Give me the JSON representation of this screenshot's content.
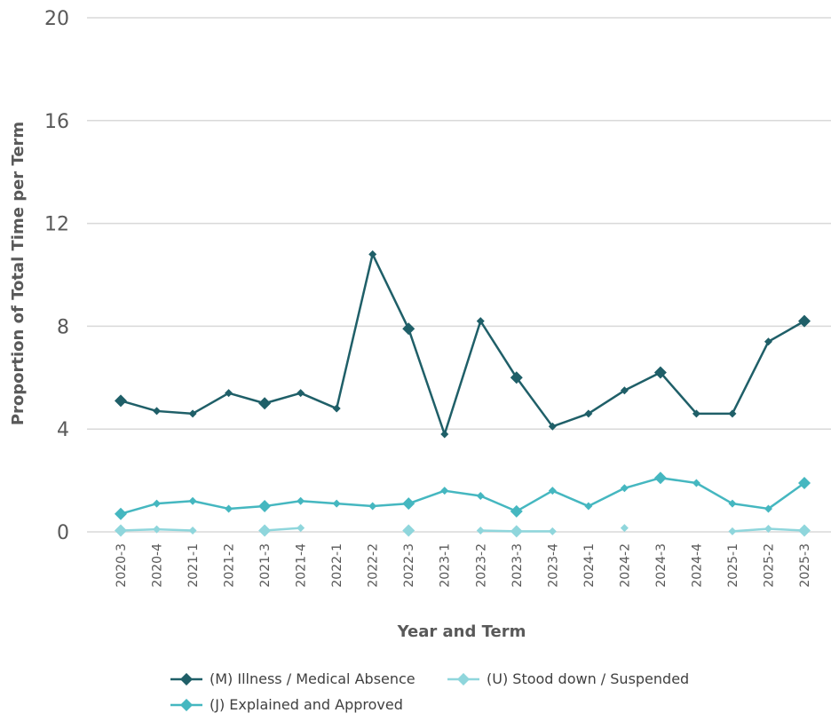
{
  "chart_data": {
    "type": "line",
    "xlabel": "Year and Term",
    "ylabel": "Proportion of Total Time per Term",
    "ylim": [
      0,
      20
    ],
    "yticks": [
      0,
      4,
      8,
      12,
      16,
      20
    ],
    "categories": [
      "2020-3",
      "2020-4",
      "2021-1",
      "2021-2",
      "2021-3",
      "2021-4",
      "2022-1",
      "2022-2",
      "2022-3",
      "2023-1",
      "2023-2",
      "2023-3",
      "2023-4",
      "2024-1",
      "2024-2",
      "2024-3",
      "2024-4",
      "2025-1",
      "2025-2",
      "2025-3"
    ],
    "grid": true,
    "legend_position": "bottom",
    "series": [
      {
        "name": "(M) Illness / Medical Absence",
        "color": "#1f5f68",
        "values": [
          5.1,
          4.7,
          4.6,
          5.4,
          5.0,
          5.4,
          4.8,
          10.8,
          7.9,
          3.8,
          8.2,
          6.0,
          4.1,
          4.6,
          5.5,
          6.2,
          4.6,
          4.6,
          7.4,
          8.2
        ],
        "large_markers": [
          0,
          4,
          8,
          11,
          15,
          19
        ]
      },
      {
        "name": "(J) Explained and Approved",
        "color": "#45b7c0",
        "values": [
          0.7,
          1.1,
          1.2,
          0.9,
          1.0,
          1.2,
          1.1,
          1.0,
          1.1,
          1.6,
          1.4,
          0.8,
          1.6,
          1.0,
          1.7,
          2.1,
          1.9,
          1.1,
          0.9,
          1.9
        ],
        "large_markers": [
          0,
          4,
          8,
          11,
          15,
          19
        ]
      },
      {
        "name": "(U) Stood down / Suspended",
        "color": "#8fd6dc",
        "values": [
          0.05,
          0.1,
          0.05,
          null,
          0.05,
          0.15,
          null,
          null,
          0.05,
          null,
          0.05,
          0.02,
          0.02,
          null,
          0.15,
          null,
          null,
          0.02,
          0.12,
          0.05
        ],
        "large_markers": [
          0,
          4,
          8,
          11,
          15,
          19
        ]
      }
    ]
  }
}
